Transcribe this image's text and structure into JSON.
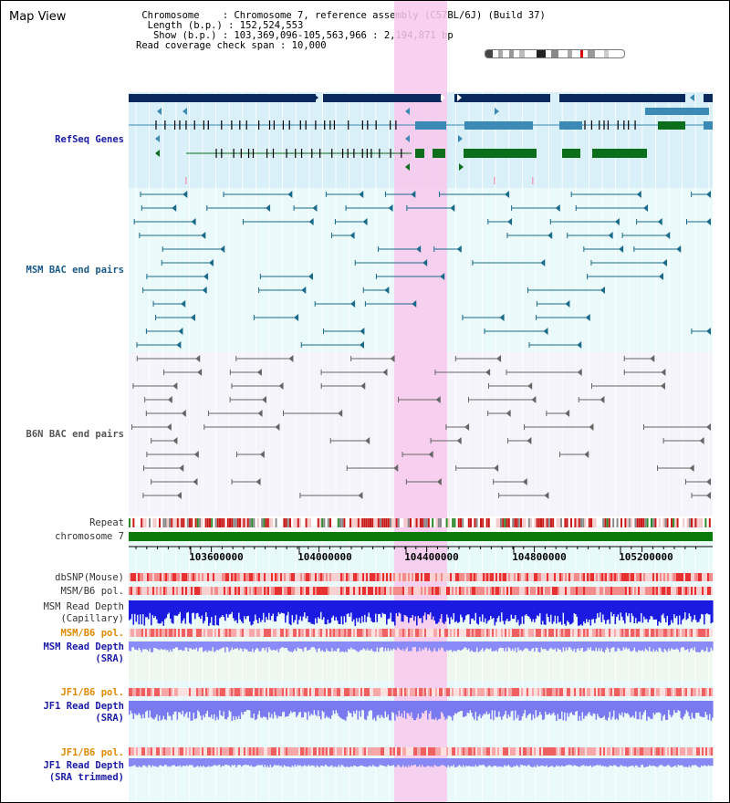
{
  "view_title": "Map View",
  "header": {
    "chromosome": " Chromosome    : Chromosome 7, reference assembly (C57BL/6J) (Build 37)",
    "length": "  Length (b.p.) : 152,524,553",
    "show": "   Show (b.p.) : 103,369,096-105,563,966 : 2,194,871 bp",
    "read_coverage": "Read coverage check span : 10,000"
  },
  "tracks": {
    "refseq": "RefSeq Genes",
    "msm_bac": "MSM BAC end pairs",
    "b6n_bac": "B6N BAC end pairs",
    "repeat": "Repeat",
    "chromosome": "chromosome 7",
    "dbsnp": "dbSNP(Mouse)",
    "msm_b6_pol_1": "MSM/B6 pol.",
    "msm_read_depth_cap": "MSM Read Depth\n(Capillary)",
    "msm_b6_pol_2": "MSM/B6 pol.",
    "msm_read_depth_sra": "MSM Read Depth\n(SRA)",
    "jf1_b6_pol_1": "JF1/B6 pol.",
    "jf1_read_depth_sra": "JF1 Read Depth\n(SRA)",
    "jf1_b6_pol_2": "JF1/B6 pol.",
    "jf1_read_depth_trim": "JF1 Read Depth\n(SRA trimmed)"
  },
  "axis": {
    "ticks": [
      "103600000",
      "104000000",
      "104400000",
      "104800000",
      "105200000"
    ]
  },
  "colors": {
    "refseq_label": "#1a1aa6",
    "msm_label": "#1a5a8a",
    "b6n_label": "#555555",
    "pol_label": "#e08a00",
    "depth_label": "#1a1aa6",
    "highlight": "#f8c8ec"
  }
}
